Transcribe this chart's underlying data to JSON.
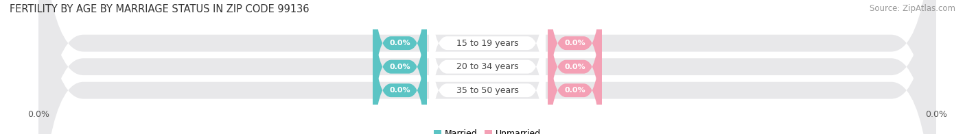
{
  "title": "FERTILITY BY AGE BY MARRIAGE STATUS IN ZIP CODE 99136",
  "source": "Source: ZipAtlas.com",
  "age_groups": [
    "15 to 19 years",
    "20 to 34 years",
    "35 to 50 years"
  ],
  "married_values": [
    0.0,
    0.0,
    0.0
  ],
  "unmarried_values": [
    0.0,
    0.0,
    0.0
  ],
  "married_color": "#5bc4c4",
  "unmarried_color": "#f4a0b5",
  "bar_bg_color": "#e8e8ea",
  "center_pill_color": "#ffffff",
  "title_fontsize": 10.5,
  "source_fontsize": 8.5,
  "label_fontsize": 9,
  "value_fontsize": 8,
  "tick_label_fontsize": 9,
  "background_color": "#ffffff",
  "legend_married": "Married",
  "legend_unmarried": "Unmarried",
  "left_tick": "0.0%",
  "right_tick": "0.0%"
}
